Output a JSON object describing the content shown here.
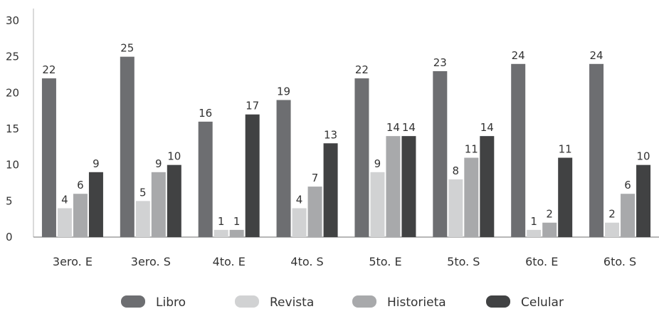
{
  "chart_data": {
    "type": "bar",
    "title": "",
    "xlabel": "",
    "ylabel": "",
    "ylim": [
      0,
      30
    ],
    "yticks": [
      0,
      5,
      10,
      15,
      20,
      25,
      30
    ],
    "grid": false,
    "legend_position": "bottom",
    "categories": [
      "3ero. E",
      "3ero. S",
      "4to. E",
      "4to. S",
      "5to. E",
      "5to. S",
      "6to. E",
      "6to. S"
    ],
    "series": [
      {
        "name": "Libro",
        "color": "#6d6e71",
        "values": [
          22,
          25,
          16,
          19,
          22,
          23,
          24,
          24
        ]
      },
      {
        "name": "Revista",
        "color": "#d1d2d3",
        "values": [
          4,
          5,
          1,
          4,
          9,
          8,
          1,
          2
        ]
      },
      {
        "name": "Historieta",
        "color": "#a8a9ab",
        "values": [
          6,
          9,
          1,
          7,
          14,
          11,
          2,
          6
        ]
      },
      {
        "name": "Celular",
        "color": "#414243",
        "values": [
          9,
          10,
          17,
          13,
          14,
          14,
          11,
          10
        ]
      }
    ]
  }
}
